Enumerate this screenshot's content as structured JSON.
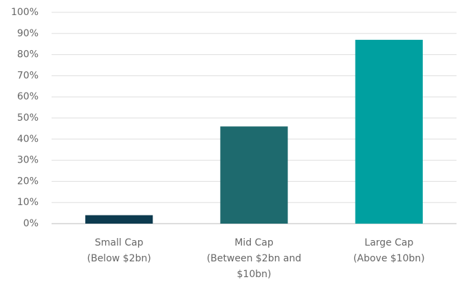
{
  "chart_data": {
    "type": "bar",
    "categories": [
      [
        "Small Cap",
        "(Below $2bn)"
      ],
      [
        "Mid Cap",
        "(Between $2bn and",
        "$10bn)"
      ],
      [
        "Large Cap",
        "(Above $10bn)"
      ]
    ],
    "values": [
      4,
      46,
      87
    ],
    "colors": [
      "#0d3b4f",
      "#1e6a6e",
      "#00a0a0"
    ],
    "ylim": [
      0,
      100
    ],
    "yticks": [
      {
        "value": 0,
        "label": "0%"
      },
      {
        "value": 10,
        "label": "10%"
      },
      {
        "value": 20,
        "label": "20%"
      },
      {
        "value": 30,
        "label": "30%"
      },
      {
        "value": 40,
        "label": "40%"
      },
      {
        "value": 50,
        "label": "50%"
      },
      {
        "value": 60,
        "label": "60%"
      },
      {
        "value": 70,
        "label": "70%"
      },
      {
        "value": 80,
        "label": "80%"
      },
      {
        "value": 90,
        "label": "90%"
      },
      {
        "value": 100,
        "label": "100%"
      }
    ],
    "grid": true
  }
}
